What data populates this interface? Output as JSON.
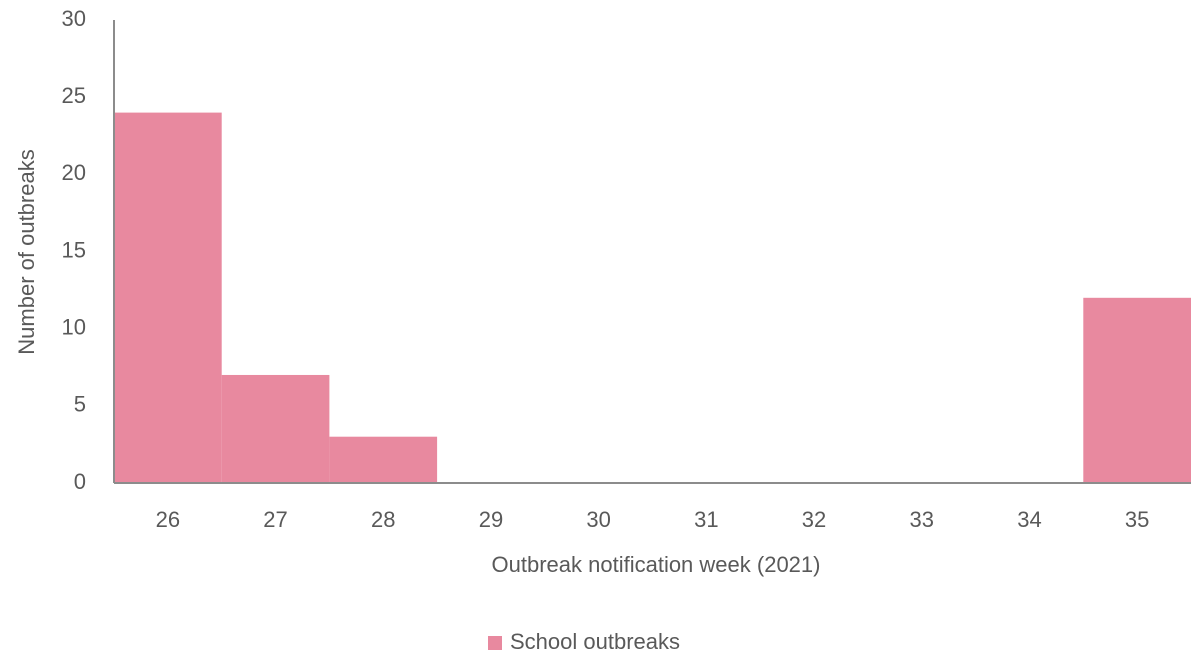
{
  "chart_data": {
    "type": "bar",
    "x_label": "Outbreak notification week (2021)",
    "y_label": "Number of outbreaks",
    "categories": [
      "26",
      "27",
      "28",
      "29",
      "30",
      "31",
      "32",
      "33",
      "34",
      "35"
    ],
    "series": [
      {
        "name": "School outbreaks",
        "color": "#e8899f",
        "values": [
          24,
          7,
          3,
          0,
          0,
          0,
          0,
          0,
          0,
          12
        ]
      }
    ],
    "ylim": [
      0,
      30
    ],
    "yticks": [
      0,
      5,
      10,
      15,
      20,
      25,
      30
    ],
    "grid": false,
    "legend": "bottom"
  }
}
